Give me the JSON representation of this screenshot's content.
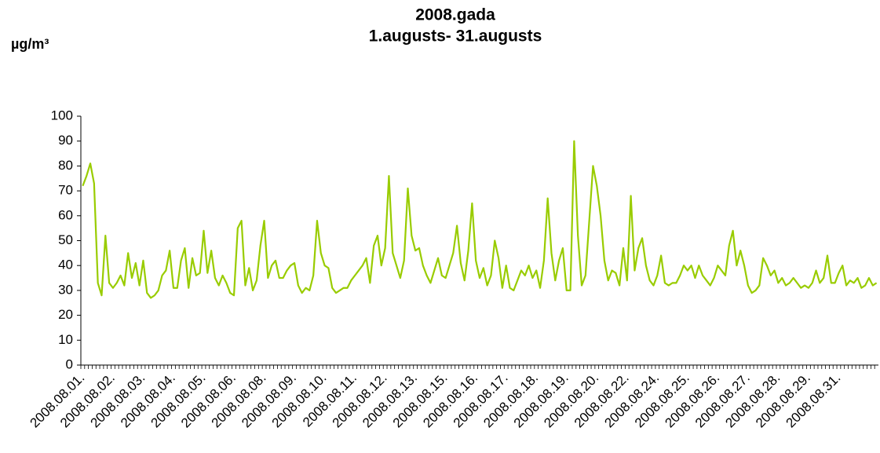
{
  "chart_data": {
    "type": "line",
    "title": "2008.gada",
    "subtitle": "1.augusts- 31.augusts",
    "ylabel": "µg/m³",
    "ylim": [
      0,
      100
    ],
    "yticks": [
      0,
      10,
      20,
      30,
      40,
      50,
      60,
      70,
      80,
      90,
      100
    ],
    "color": "#99cc00",
    "grid": false,
    "categories": [
      "2008.08.01.",
      null,
      null,
      null,
      null,
      null,
      null,
      null,
      "2008.08.02.",
      null,
      null,
      null,
      null,
      null,
      null,
      null,
      "2008.08.03.",
      null,
      null,
      null,
      null,
      null,
      null,
      null,
      "2008.08.04.",
      null,
      null,
      null,
      null,
      null,
      null,
      null,
      "2008.08.05.",
      null,
      null,
      null,
      null,
      null,
      null,
      null,
      "2008.08.06.",
      null,
      null,
      null,
      null,
      null,
      null,
      null,
      "2008.08.08.",
      null,
      null,
      null,
      null,
      null,
      null,
      null,
      "2008.08.09.",
      null,
      null,
      null,
      null,
      null,
      null,
      null,
      "2008.08.10.",
      null,
      null,
      null,
      null,
      null,
      null,
      null,
      "2008.08.11.",
      null,
      null,
      null,
      null,
      null,
      null,
      null,
      "2008.08.12.",
      null,
      null,
      null,
      null,
      null,
      null,
      null,
      "2008.08.13.",
      null,
      null,
      null,
      null,
      null,
      null,
      null,
      "2008.08.15.",
      null,
      null,
      null,
      null,
      null,
      null,
      null,
      "2008.08.16.",
      null,
      null,
      null,
      null,
      null,
      null,
      null,
      "2008.08.17.",
      null,
      null,
      null,
      null,
      null,
      null,
      null,
      "2008.08.18.",
      null,
      null,
      null,
      null,
      null,
      null,
      null,
      "2008.08.19.",
      null,
      null,
      null,
      null,
      null,
      null,
      null,
      "2008.08.20.",
      null,
      null,
      null,
      null,
      null,
      null,
      null,
      "2008.08.22.",
      null,
      null,
      null,
      null,
      null,
      null,
      null,
      "2008.08.24.",
      null,
      null,
      null,
      null,
      null,
      null,
      null,
      "2008.08.25.",
      null,
      null,
      null,
      null,
      null,
      null,
      null,
      "2008.08.26.",
      null,
      null,
      null,
      null,
      null,
      null,
      null,
      "2008.08.27.",
      null,
      null,
      null,
      null,
      null,
      null,
      null,
      "2008.08.28.",
      null,
      null,
      null,
      null,
      null,
      null,
      null,
      "2008.08.29.",
      null,
      null,
      null,
      null,
      null,
      null,
      null,
      "2008.08.31.",
      null,
      null,
      null,
      null,
      null,
      null,
      null,
      null,
      null,
      null
    ],
    "values": [
      72,
      76,
      81,
      73,
      33,
      28,
      52,
      33,
      31,
      33,
      36,
      32,
      45,
      35,
      41,
      32,
      42,
      29,
      27,
      28,
      30,
      36,
      38,
      46,
      31,
      31,
      42,
      47,
      31,
      43,
      36,
      37,
      54,
      37,
      46,
      35,
      32,
      36,
      33,
      29,
      28,
      55,
      58,
      32,
      39,
      30,
      34,
      48,
      58,
      35,
      40,
      42,
      35,
      35,
      38,
      40,
      41,
      32,
      29,
      31,
      30,
      36,
      58,
      45,
      40,
      39,
      31,
      29,
      30,
      31,
      31,
      34,
      36,
      38,
      40,
      43,
      33,
      48,
      52,
      40,
      47,
      76,
      45,
      40,
      35,
      42,
      71,
      52,
      46,
      47,
      40,
      36,
      33,
      38,
      43,
      36,
      35,
      40,
      45,
      56,
      41,
      34,
      46,
      65,
      42,
      35,
      39,
      32,
      36,
      50,
      43,
      31,
      40,
      31,
      30,
      34,
      38,
      36,
      40,
      35,
      38,
      31,
      42,
      67,
      45,
      34,
      42,
      47,
      30,
      30,
      90,
      52,
      32,
      36,
      58,
      80,
      72,
      60,
      42,
      34,
      38,
      37,
      32,
      47,
      34,
      68,
      38,
      47,
      51,
      40,
      34,
      32,
      36,
      44,
      33,
      32,
      33,
      33,
      36,
      40,
      38,
      40,
      35,
      40,
      36,
      34,
      32,
      35,
      40,
      38,
      36,
      48,
      54,
      40,
      46,
      40,
      32,
      29,
      30,
      32,
      43,
      40,
      36,
      38,
      33,
      35,
      32,
      33,
      35,
      33,
      31,
      32,
      31,
      33,
      38,
      33,
      35,
      44,
      33,
      33,
      37,
      40,
      32,
      34,
      33,
      35,
      31,
      32,
      35,
      32,
      33
    ]
  }
}
